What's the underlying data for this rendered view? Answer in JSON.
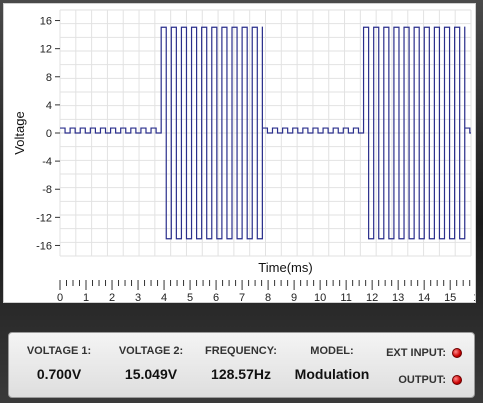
{
  "chart_data": {
    "type": "line",
    "xlabel": "Time(ms)",
    "ylabel": "Voltage",
    "xlim": [
      0,
      15.8
    ],
    "ylim": [
      -17.5,
      17.5
    ],
    "y_ticks": [
      16,
      12,
      8,
      4,
      0,
      -4,
      -8,
      -12,
      -16
    ],
    "x_ticks": [
      "0",
      "1",
      "2",
      "3",
      "4",
      "5",
      "6",
      "7",
      "8",
      "9",
      "10",
      "11",
      "12",
      "13",
      "14",
      "15",
      "1"
    ],
    "grid": true,
    "series": [
      {
        "color": "#2a2f8c",
        "period_ms": 0.3889,
        "segments": [
          {
            "start": 0.0,
            "end": 3.89,
            "low": 0.0,
            "high": 0.7
          },
          {
            "start": 3.89,
            "end": 7.78,
            "low": -15.049,
            "high": 15.049
          },
          {
            "start": 7.78,
            "end": 11.67,
            "low": 0.0,
            "high": 0.7
          },
          {
            "start": 11.67,
            "end": 15.56,
            "low": -15.049,
            "high": 15.049
          },
          {
            "start": 15.56,
            "end": 15.8,
            "low": 0.0,
            "high": 0.7
          }
        ]
      }
    ]
  },
  "panel": {
    "voltage1_label": "VOLTAGE 1:",
    "voltage1_value": "0.700V",
    "voltage2_label": "VOLTAGE 2:",
    "voltage2_value": "15.049V",
    "frequency_label": "FREQUENCY:",
    "frequency_value": "128.57Hz",
    "model_label": "MODEL:",
    "model_value": "Modulation",
    "ext_input_label": "EXT INPUT:",
    "output_label": "OUTPUT:",
    "led_color": "#cc0000"
  }
}
